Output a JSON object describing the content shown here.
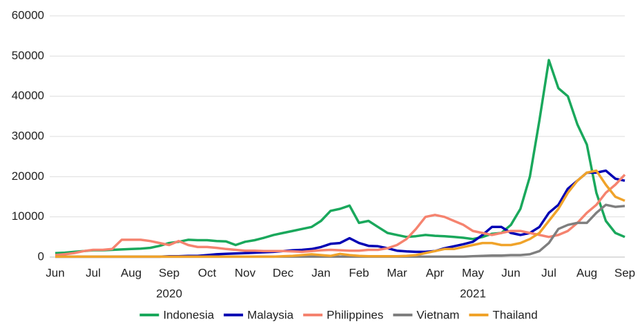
{
  "chart_data": {
    "type": "line",
    "categories": [
      "Jun",
      null,
      null,
      null,
      "Jul",
      null,
      null,
      null,
      "Aug",
      null,
      null,
      null,
      "Sep",
      null,
      null,
      null,
      "Oct",
      null,
      null,
      null,
      "Nov",
      null,
      null,
      null,
      "Dec",
      null,
      null,
      null,
      "Jan",
      null,
      null,
      null,
      "Feb",
      null,
      null,
      null,
      "Mar",
      null,
      null,
      null,
      "Apr",
      null,
      null,
      null,
      "May",
      null,
      null,
      null,
      "Jun",
      null,
      null,
      null,
      "Jul",
      null,
      null,
      null,
      "Aug",
      null,
      null,
      null,
      "Sep"
    ],
    "year_labels": [
      "2020",
      "2021"
    ],
    "series": [
      {
        "name": "Indonesia",
        "color": "#1aa85c",
        "values": [
          1000,
          1100,
          1300,
          1500,
          1700,
          1700,
          1800,
          1900,
          2000,
          2100,
          2300,
          2800,
          3500,
          3800,
          4300,
          4200,
          4200,
          4000,
          3900,
          3000,
          3800,
          4200,
          4800,
          5500,
          6000,
          6500,
          7000,
          7500,
          9000,
          11500,
          12000,
          12800,
          8500,
          9000,
          7500,
          6000,
          5500,
          5000,
          5200,
          5500,
          5300,
          5200,
          5000,
          4800,
          4500,
          5000,
          5800,
          6000,
          8000,
          12000,
          20000,
          34000,
          49000,
          42000,
          40000,
          33000,
          28000,
          16000,
          9000,
          6000,
          5000
        ]
      },
      {
        "name": "Malaysia",
        "color": "#0000b4",
        "values": [
          100,
          100,
          100,
          100,
          100,
          100,
          100,
          100,
          100,
          100,
          100,
          100,
          200,
          200,
          300,
          300,
          500,
          700,
          800,
          900,
          1000,
          1100,
          1200,
          1300,
          1500,
          1700,
          1800,
          2000,
          2500,
          3300,
          3500,
          4700,
          3500,
          2800,
          2700,
          2200,
          1600,
          1400,
          1300,
          1300,
          1500,
          2200,
          2700,
          3200,
          3800,
          5500,
          7500,
          7500,
          6000,
          5500,
          6000,
          7500,
          11000,
          13000,
          17000,
          19000,
          21000,
          21000,
          21500,
          19500,
          19000
        ]
      },
      {
        "name": "Philippines",
        "color": "#f5836f",
        "values": [
          500,
          700,
          1000,
          1500,
          1800,
          1800,
          2000,
          4300,
          4300,
          4300,
          4000,
          3500,
          3000,
          4000,
          3000,
          2500,
          2500,
          2300,
          2000,
          1800,
          1600,
          1600,
          1500,
          1500,
          1500,
          1400,
          1300,
          1500,
          1700,
          1800,
          1700,
          1600,
          1600,
          1800,
          1800,
          2200,
          3000,
          4500,
          7000,
          10000,
          10500,
          10000,
          9000,
          8000,
          6500,
          6000,
          5500,
          6000,
          6500,
          6500,
          6000,
          5500,
          5000,
          5500,
          6500,
          8500,
          11000,
          13000,
          16000,
          18000,
          20500
        ]
      },
      {
        "name": "Vietnam",
        "color": "#7f7f7f",
        "values": [
          100,
          100,
          100,
          100,
          100,
          100,
          100,
          100,
          100,
          100,
          100,
          100,
          100,
          100,
          100,
          100,
          100,
          100,
          100,
          100,
          100,
          100,
          100,
          100,
          100,
          100,
          100,
          100,
          100,
          100,
          100,
          100,
          100,
          100,
          100,
          100,
          100,
          100,
          100,
          100,
          100,
          100,
          100,
          100,
          200,
          300,
          400,
          400,
          500,
          500,
          700,
          1500,
          3500,
          7000,
          8000,
          8500,
          8500,
          11000,
          13000,
          12500,
          12700
        ]
      },
      {
        "name": "Thailand",
        "color": "#f0a32a",
        "values": [
          100,
          100,
          100,
          100,
          100,
          100,
          100,
          100,
          100,
          100,
          100,
          100,
          100,
          100,
          100,
          100,
          100,
          100,
          100,
          100,
          100,
          100,
          100,
          100,
          200,
          300,
          500,
          700,
          500,
          300,
          800,
          500,
          300,
          200,
          200,
          200,
          200,
          300,
          500,
          1000,
          1500,
          2000,
          2000,
          2500,
          3000,
          3500,
          3500,
          3000,
          3000,
          3500,
          4500,
          6000,
          9000,
          12000,
          16000,
          19000,
          21000,
          21500,
          18000,
          15000,
          14000
        ]
      }
    ],
    "ylim": [
      0,
      60000
    ],
    "yticks": [
      0,
      10000,
      20000,
      30000,
      40000,
      50000,
      60000
    ],
    "grid": true,
    "legend": "bottom"
  }
}
